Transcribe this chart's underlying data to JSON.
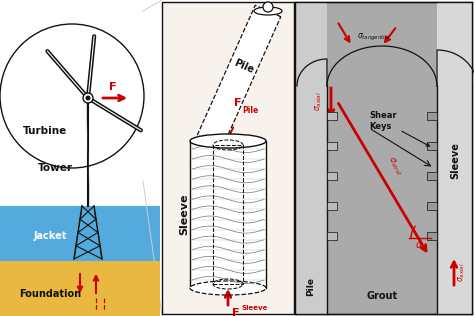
{
  "bg_color": "#ffffff",
  "red": "#cc0000",
  "black": "#111111",
  "blue": "#55aadd",
  "yellow_sand": "#e8b840",
  "grout_gray": "#aaaaaa",
  "pile_gray": "#cccccc",
  "sleeve_gray": "#d8d8d8",
  "panel_bg": "#f7f3ec",
  "zoom_line_color": "#cccccc",
  "turbine_label": "Turbine",
  "tower_label": "Tower",
  "jacket_label": "Jacket",
  "foundation_label": "Foundation",
  "pile_label": "Pile",
  "sleeve_label": "Sleeve",
  "grout_label": "Grout",
  "shear_keys_label": "Shear\nKeys",
  "sleeve_right_label": "Sleeve"
}
